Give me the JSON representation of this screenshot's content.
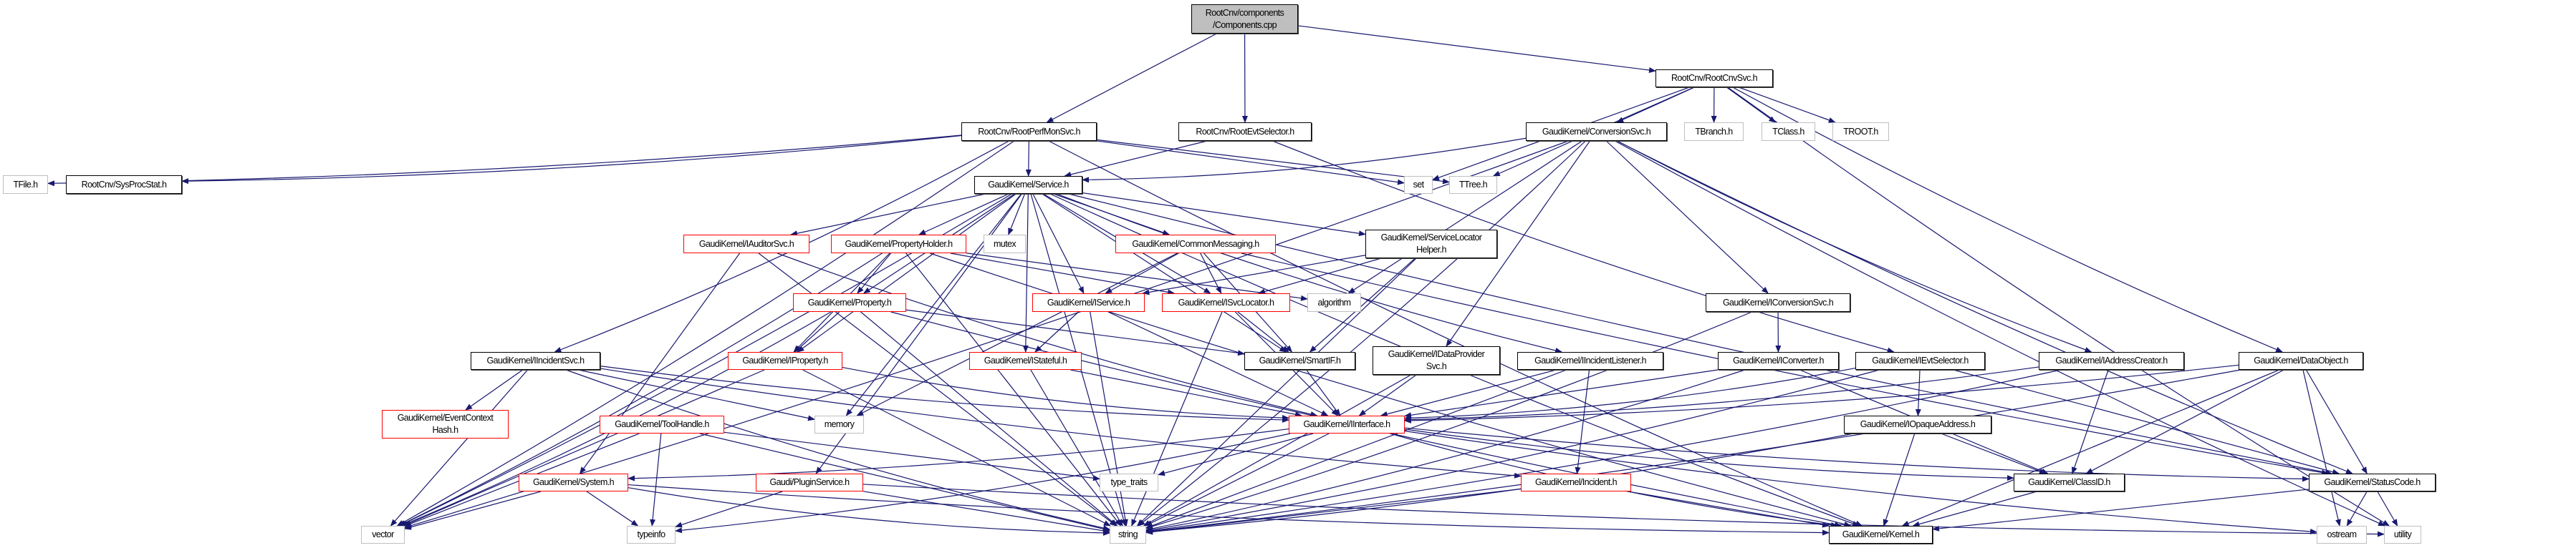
{
  "graph": {
    "edge_color": "#191970",
    "node_colors": {
      "red": "#ff0000",
      "black": "#000000",
      "gray": "#bfbfbf",
      "root_fill": "#bfbfbf"
    },
    "nodes": [
      {
        "id": "components",
        "label": [
          "RootCnv/components",
          "/Components.cpp"
        ],
        "kind": "root"
      },
      {
        "id": "rootperfmonsvc",
        "label": [
          "RootCnv/RootPerfMonSvc.h"
        ],
        "kind": "black"
      },
      {
        "id": "rootevtselector",
        "label": [
          "RootCnv/RootEvtSelector.h"
        ],
        "kind": "black"
      },
      {
        "id": "rootcnvsvc",
        "label": [
          "RootCnv/RootCnvSvc.h"
        ],
        "kind": "black"
      },
      {
        "id": "tfile",
        "label": [
          "TFile.h"
        ],
        "kind": "gray"
      },
      {
        "id": "sysprocstat",
        "label": [
          "RootCnv/SysProcStat.h"
        ],
        "kind": "black"
      },
      {
        "id": "service",
        "label": [
          "GaudiKernel/Service.h"
        ],
        "kind": "black"
      },
      {
        "id": "set",
        "label": [
          "set"
        ],
        "kind": "gray"
      },
      {
        "id": "ttree",
        "label": [
          "TTree.h"
        ],
        "kind": "gray"
      },
      {
        "id": "conversionsvc",
        "label": [
          "GaudiKernel/ConversionSvc.h"
        ],
        "kind": "black"
      },
      {
        "id": "tbranch",
        "label": [
          "TBranch.h"
        ],
        "kind": "gray"
      },
      {
        "id": "tclass",
        "label": [
          "TClass.h"
        ],
        "kind": "gray"
      },
      {
        "id": "troot",
        "label": [
          "TROOT.h"
        ],
        "kind": "gray"
      },
      {
        "id": "iauditorsvc",
        "label": [
          "GaudiKernel/IAuditorSvc.h"
        ],
        "kind": "red"
      },
      {
        "id": "propertyholder",
        "label": [
          "GaudiKernel/PropertyHolder.h"
        ],
        "kind": "red"
      },
      {
        "id": "mutex",
        "label": [
          "mutex"
        ],
        "kind": "gray"
      },
      {
        "id": "commonmessaging",
        "label": [
          "GaudiKernel/CommonMessaging.h"
        ],
        "kind": "red"
      },
      {
        "id": "servicelocatorhelper",
        "label": [
          "GaudiKernel/ServiceLocator",
          "Helper.h"
        ],
        "kind": "black"
      },
      {
        "id": "property",
        "label": [
          "GaudiKernel/Property.h"
        ],
        "kind": "red"
      },
      {
        "id": "iservice",
        "label": [
          "GaudiKernel/IService.h"
        ],
        "kind": "red"
      },
      {
        "id": "isvclocator",
        "label": [
          "GaudiKernel/ISvcLocator.h"
        ],
        "kind": "red"
      },
      {
        "id": "algorithm",
        "label": [
          "algorithm"
        ],
        "kind": "gray"
      },
      {
        "id": "iconversionsvc",
        "label": [
          "GaudiKernel/IConversionSvc.h"
        ],
        "kind": "black"
      },
      {
        "id": "iincidentsvc",
        "label": [
          "GaudiKernel/IIncidentSvc.h"
        ],
        "kind": "black"
      },
      {
        "id": "iproperty",
        "label": [
          "GaudiKernel/IProperty.h"
        ],
        "kind": "red"
      },
      {
        "id": "istateful",
        "label": [
          "GaudiKernel/IStateful.h"
        ],
        "kind": "red"
      },
      {
        "id": "smartif",
        "label": [
          "GaudiKernel/SmartIF.h"
        ],
        "kind": "black"
      },
      {
        "id": "idataprovidersvc",
        "label": [
          "GaudiKernel/IDataProvider",
          "Svc.h"
        ],
        "kind": "black"
      },
      {
        "id": "iincidentlistener",
        "label": [
          "GaudiKernel/IIncidentListener.h"
        ],
        "kind": "black"
      },
      {
        "id": "iconverter",
        "label": [
          "GaudiKernel/IConverter.h"
        ],
        "kind": "black"
      },
      {
        "id": "ievtselector",
        "label": [
          "GaudiKernel/IEvtSelector.h"
        ],
        "kind": "black"
      },
      {
        "id": "iaddresscreator",
        "label": [
          "GaudiKernel/IAddressCreator.h"
        ],
        "kind": "black"
      },
      {
        "id": "dataobject",
        "label": [
          "GaudiKernel/DataObject.h"
        ],
        "kind": "black"
      },
      {
        "id": "eventcontexthash",
        "label": [
          "GaudiKernel/EventContext",
          "Hash.h"
        ],
        "kind": "red"
      },
      {
        "id": "toolhandle",
        "label": [
          "GaudiKernel/ToolHandle.h"
        ],
        "kind": "red"
      },
      {
        "id": "memory",
        "label": [
          "memory"
        ],
        "kind": "gray"
      },
      {
        "id": "interface",
        "label": [
          "GaudiKernel/IInterface.h"
        ],
        "kind": "red"
      },
      {
        "id": "iopaqueaddress",
        "label": [
          "GaudiKernel/IOpaqueAddress.h"
        ],
        "kind": "black"
      },
      {
        "id": "system",
        "label": [
          "GaudiKernel/System.h"
        ],
        "kind": "red"
      },
      {
        "id": "pluginservice",
        "label": [
          "Gaudi/PluginService.h"
        ],
        "kind": "red"
      },
      {
        "id": "type_traits",
        "label": [
          "type_traits"
        ],
        "kind": "gray"
      },
      {
        "id": "incident",
        "label": [
          "GaudiKernel/Incident.h"
        ],
        "kind": "red"
      },
      {
        "id": "classid",
        "label": [
          "GaudiKernel/ClassID.h"
        ],
        "kind": "black"
      },
      {
        "id": "statuscode",
        "label": [
          "GaudiKernel/StatusCode.h"
        ],
        "kind": "black"
      },
      {
        "id": "vector",
        "label": [
          "vector"
        ],
        "kind": "gray"
      },
      {
        "id": "typeinfo",
        "label": [
          "typeinfo"
        ],
        "kind": "gray"
      },
      {
        "id": "string",
        "label": [
          "string"
        ],
        "kind": "gray"
      },
      {
        "id": "kernel",
        "label": [
          "GaudiKernel/Kernel.h"
        ],
        "kind": "black"
      },
      {
        "id": "ostream",
        "label": [
          "ostream"
        ],
        "kind": "gray"
      },
      {
        "id": "utility",
        "label": [
          "utility"
        ],
        "kind": "gray"
      }
    ],
    "edges": [
      [
        "components",
        "rootperfmonsvc"
      ],
      [
        "components",
        "rootevtselector"
      ],
      [
        "components",
        "rootcnvsvc"
      ],
      [
        "rootperfmonsvc",
        "tfile"
      ],
      [
        "rootperfmonsvc",
        "sysprocstat"
      ],
      [
        "rootperfmonsvc",
        "service"
      ],
      [
        "rootperfmonsvc",
        "set"
      ],
      [
        "rootperfmonsvc",
        "ttree"
      ],
      [
        "rootperfmonsvc",
        "iincidentsvc"
      ],
      [
        "rootperfmonsvc",
        "vector"
      ],
      [
        "rootperfmonsvc",
        "kernel"
      ],
      [
        "rootevtselector",
        "service"
      ],
      [
        "rootevtselector",
        "ievtselector"
      ],
      [
        "rootcnvsvc",
        "conversionsvc"
      ],
      [
        "rootcnvsvc",
        "tbranch"
      ],
      [
        "rootcnvsvc",
        "tclass"
      ],
      [
        "rootcnvsvc",
        "troot"
      ],
      [
        "rootcnvsvc",
        "set"
      ],
      [
        "rootcnvsvc",
        "ttree"
      ],
      [
        "rootcnvsvc",
        "dataobject"
      ],
      [
        "rootcnvsvc",
        "utility"
      ],
      [
        "conversionsvc",
        "service"
      ],
      [
        "conversionsvc",
        "vector"
      ],
      [
        "conversionsvc",
        "iconversionsvc"
      ],
      [
        "conversionsvc",
        "iaddresscreator"
      ],
      [
        "conversionsvc",
        "algorithm"
      ],
      [
        "conversionsvc",
        "idataprovidersvc"
      ],
      [
        "conversionsvc",
        "string"
      ],
      [
        "conversionsvc",
        "utility"
      ],
      [
        "conversionsvc",
        "statuscode"
      ],
      [
        "service",
        "iauditorsvc"
      ],
      [
        "service",
        "propertyholder"
      ],
      [
        "service",
        "mutex"
      ],
      [
        "service",
        "commonmessaging"
      ],
      [
        "service",
        "servicelocatorhelper"
      ],
      [
        "service",
        "iservice"
      ],
      [
        "service",
        "isvclocator"
      ],
      [
        "service",
        "istateful"
      ],
      [
        "service",
        "smartif"
      ],
      [
        "service",
        "iproperty"
      ],
      [
        "service",
        "property"
      ],
      [
        "service",
        "pluginservice"
      ],
      [
        "service",
        "iincidentlistener"
      ],
      [
        "service",
        "vector"
      ],
      [
        "service",
        "string"
      ],
      [
        "service",
        "memory"
      ],
      [
        "service",
        "kernel"
      ],
      [
        "service",
        "statuscode"
      ],
      [
        "iauditorsvc",
        "interface"
      ],
      [
        "iauditorsvc",
        "system"
      ],
      [
        "iauditorsvc",
        "string"
      ],
      [
        "propertyholder",
        "property"
      ],
      [
        "propertyholder",
        "iproperty"
      ],
      [
        "propertyholder",
        "vector"
      ],
      [
        "propertyholder",
        "string"
      ],
      [
        "propertyholder",
        "algorithm"
      ],
      [
        "propertyholder",
        "kernel"
      ],
      [
        "propertyholder",
        "isvclocator"
      ],
      [
        "commonmessaging",
        "iservice"
      ],
      [
        "commonmessaging",
        "isvclocator"
      ],
      [
        "commonmessaging",
        "smartif"
      ],
      [
        "commonmessaging",
        "memory"
      ],
      [
        "commonmessaging",
        "statuscode"
      ],
      [
        "servicelocatorhelper",
        "isvclocator"
      ],
      [
        "servicelocatorhelper",
        "smartif"
      ],
      [
        "servicelocatorhelper",
        "string"
      ],
      [
        "servicelocatorhelper",
        "iservice"
      ],
      [
        "property",
        "iproperty"
      ],
      [
        "property",
        "vector"
      ],
      [
        "property",
        "string"
      ],
      [
        "property",
        "smartif"
      ],
      [
        "property",
        "kernel"
      ],
      [
        "iservice",
        "istateful"
      ],
      [
        "iservice",
        "string"
      ],
      [
        "iservice",
        "interface"
      ],
      [
        "isvclocator",
        "smartif"
      ],
      [
        "isvclocator",
        "interface"
      ],
      [
        "isvclocator",
        "string"
      ],
      [
        "iproperty",
        "interface"
      ],
      [
        "iproperty",
        "vector"
      ],
      [
        "iproperty",
        "string"
      ],
      [
        "istateful",
        "interface"
      ],
      [
        "istateful",
        "string"
      ],
      [
        "iincidentsvc",
        "eventcontexthash"
      ],
      [
        "iincidentsvc",
        "vector"
      ],
      [
        "iincidentsvc",
        "string"
      ],
      [
        "iincidentsvc",
        "memory"
      ],
      [
        "iincidentsvc",
        "interface"
      ],
      [
        "iincidentsvc",
        "incident"
      ],
      [
        "toolhandle",
        "vector"
      ],
      [
        "toolhandle",
        "typeinfo"
      ],
      [
        "toolhandle",
        "string"
      ],
      [
        "toolhandle",
        "type_traits"
      ],
      [
        "system",
        "vector"
      ],
      [
        "system",
        "typeinfo"
      ],
      [
        "system",
        "string"
      ],
      [
        "system",
        "kernel"
      ],
      [
        "pluginservice",
        "typeinfo"
      ],
      [
        "pluginservice",
        "string"
      ],
      [
        "pluginservice",
        "utility"
      ],
      [
        "smartif",
        "interface"
      ],
      [
        "idataprovidersvc",
        "interface"
      ],
      [
        "idataprovidersvc",
        "string"
      ],
      [
        "iincidentlistener",
        "interface"
      ],
      [
        "iincidentlistener",
        "incident"
      ],
      [
        "iincidentlistener",
        "string"
      ],
      [
        "iconversionsvc",
        "iconverter"
      ],
      [
        "iconversionsvc",
        "string"
      ],
      [
        "iconverter",
        "interface"
      ],
      [
        "iconverter",
        "classid"
      ],
      [
        "iconverter",
        "string"
      ],
      [
        "ievtselector",
        "interface"
      ],
      [
        "ievtselector",
        "iopaqueaddress"
      ],
      [
        "ievtselector",
        "statuscode"
      ],
      [
        "ievtselector",
        "string"
      ],
      [
        "iaddresscreator",
        "interface"
      ],
      [
        "iaddresscreator",
        "classid"
      ],
      [
        "iaddresscreator",
        "string"
      ],
      [
        "dataobject",
        "interface"
      ],
      [
        "dataobject",
        "classid"
      ],
      [
        "dataobject",
        "statuscode"
      ],
      [
        "dataobject",
        "string"
      ],
      [
        "dataobject",
        "ostream"
      ],
      [
        "dataobject",
        "kernel"
      ],
      [
        "interface",
        "system"
      ],
      [
        "interface",
        "type_traits"
      ],
      [
        "interface",
        "classid"
      ],
      [
        "interface",
        "statuscode"
      ],
      [
        "interface",
        "kernel"
      ],
      [
        "interface",
        "string"
      ],
      [
        "interface",
        "typeinfo"
      ],
      [
        "interface",
        "ostream"
      ],
      [
        "iopaqueaddress",
        "classid"
      ],
      [
        "iopaqueaddress",
        "kernel"
      ],
      [
        "iopaqueaddress",
        "string"
      ],
      [
        "incident",
        "string"
      ],
      [
        "incident",
        "kernel"
      ],
      [
        "classid",
        "kernel"
      ],
      [
        "statuscode",
        "kernel"
      ],
      [
        "statuscode",
        "ostream"
      ],
      [
        "statuscode",
        "utility"
      ]
    ]
  }
}
